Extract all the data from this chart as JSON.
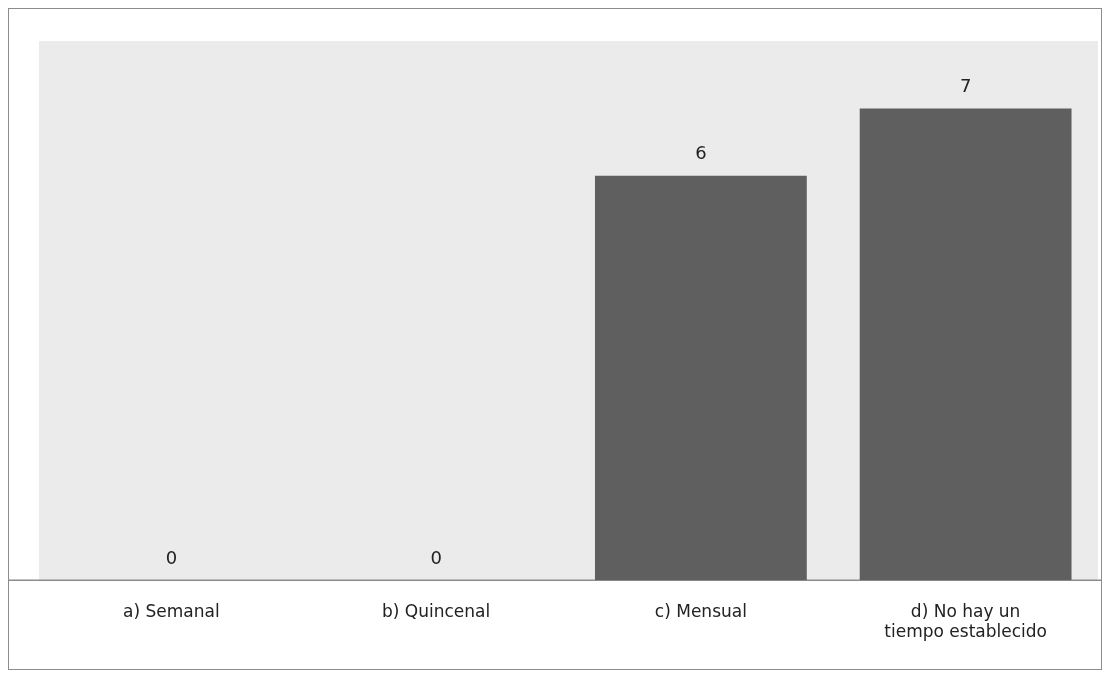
{
  "chart_data": {
    "type": "bar",
    "categories": [
      "a) Semanal",
      "b) Quincenal",
      "c) Mensual",
      "d) No hay un tiempo establecido"
    ],
    "values": [
      0,
      0,
      6,
      7
    ],
    "color": "#5f5f5f",
    "ylim": [
      0,
      8
    ],
    "tick_labels": "x",
    "data_labels": true,
    "grid": false,
    "legend": false
  }
}
